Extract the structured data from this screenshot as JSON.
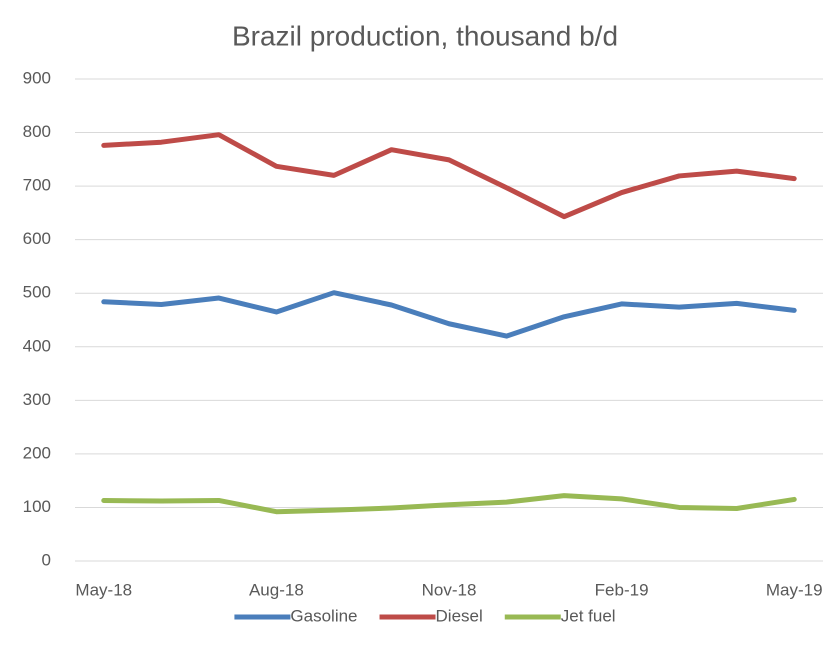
{
  "chart_data": {
    "type": "line",
    "title": "Brazil production, thousand b/d",
    "categories": [
      "May-18",
      null,
      null,
      "Aug-18",
      null,
      null,
      "Nov-18",
      null,
      null,
      "Feb-19",
      null,
      null,
      "May-19"
    ],
    "series": [
      {
        "name": "Gasoline",
        "color": "#4a7ebb",
        "values": [
          484,
          479,
          491,
          465,
          501,
          478,
          443,
          420,
          456,
          480,
          474,
          481,
          468
        ]
      },
      {
        "name": "Diesel",
        "color": "#be4b48",
        "values": [
          776,
          782,
          796,
          737,
          720,
          768,
          749,
          697,
          643,
          688,
          719,
          728,
          714
        ]
      },
      {
        "name": "Jet fuel",
        "color": "#98b954",
        "values": [
          113,
          112,
          113,
          92,
          95,
          99,
          105,
          110,
          122,
          116,
          100,
          98,
          115
        ]
      }
    ],
    "ylim": [
      0,
      900
    ],
    "yticks": [
      0,
      100,
      200,
      300,
      400,
      500,
      600,
      700,
      800,
      900
    ],
    "grid": true,
    "legend": "bottom"
  }
}
